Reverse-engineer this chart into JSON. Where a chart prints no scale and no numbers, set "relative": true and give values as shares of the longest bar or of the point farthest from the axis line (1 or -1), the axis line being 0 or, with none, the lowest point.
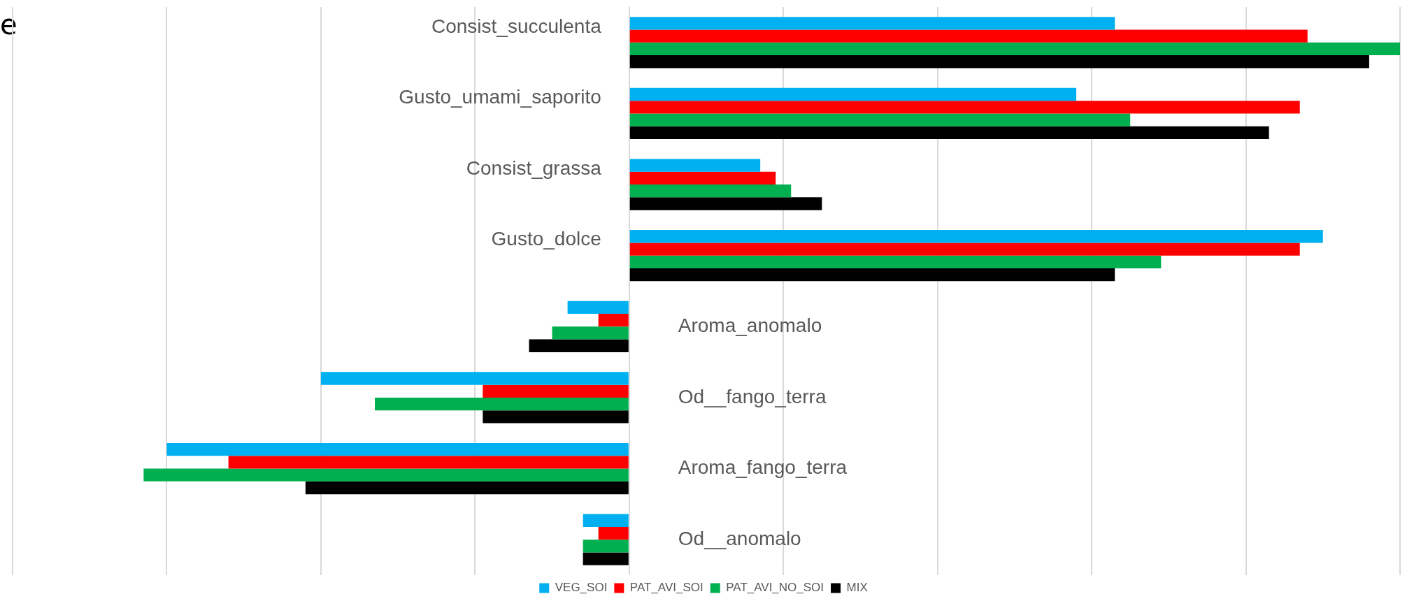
{
  "chart_data": {
    "type": "bar",
    "orientation": "horizontal",
    "relative": true,
    "grid": "x",
    "legend": "bottom",
    "categories": [
      "Consist_succulenta",
      "Gusto_umami_saporito",
      "Consist_grassa",
      "Gusto_dolce",
      "Aroma_anomalo",
      "Od__fango_terra",
      "Aroma_fango_terra",
      "Od__anomalo"
    ],
    "series": [
      {
        "name": "VEG_SOI",
        "color": "#00b0f0",
        "values": [
          0.63,
          0.58,
          0.17,
          0.9,
          -0.08,
          -0.4,
          -0.6,
          -0.06
        ]
      },
      {
        "name": "PAT_AVI_SOI",
        "color": "#ff0000",
        "values": [
          0.88,
          0.87,
          0.19,
          0.87,
          -0.04,
          -0.19,
          -0.52,
          -0.04
        ]
      },
      {
        "name": "PAT_AVI_NO_SOI",
        "color": "#00b050",
        "values": [
          1,
          0.65,
          0.21,
          0.69,
          -0.1,
          -0.33,
          -0.63,
          -0.06
        ]
      },
      {
        "name": "MIX",
        "color": "#000000",
        "values": [
          0.96,
          0.83,
          0.25,
          0.63,
          -0.13,
          -0.19,
          -0.42,
          -0.06
        ]
      }
    ],
    "annotations": [
      "e"
    ]
  }
}
